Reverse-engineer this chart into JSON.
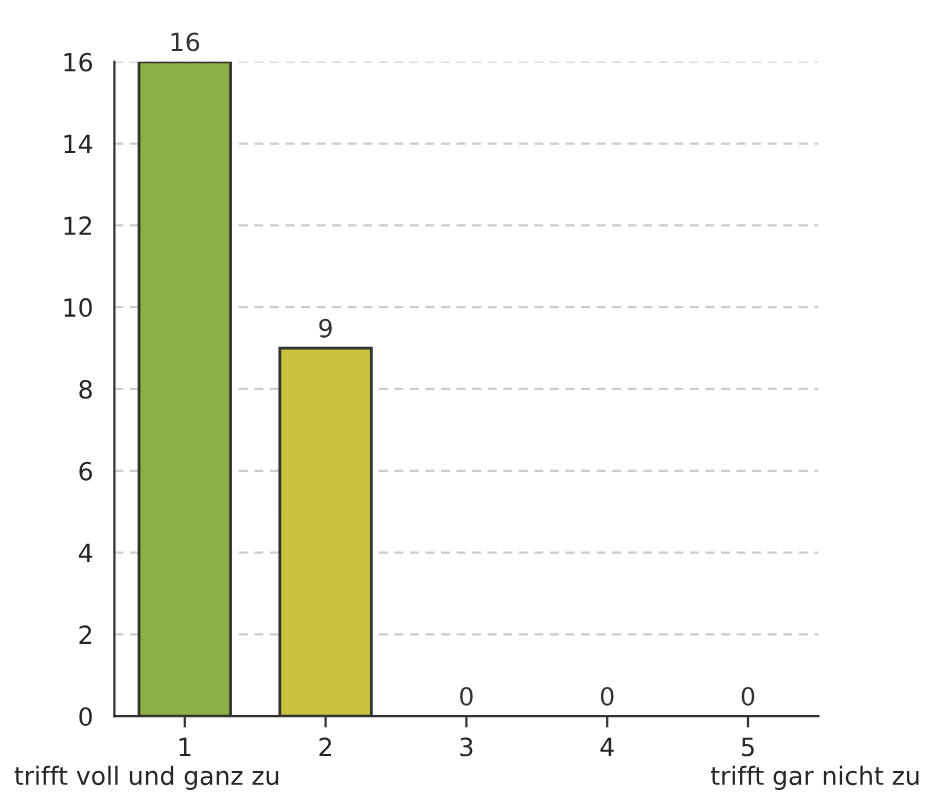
{
  "chart_data": {
    "type": "bar",
    "categories": [
      "1",
      "2",
      "3",
      "4",
      "5"
    ],
    "values": [
      16,
      9,
      0,
      0,
      0
    ],
    "colors": [
      "#8db046",
      "#c9c23e",
      null,
      null,
      null
    ],
    "ylim": [
      0,
      16
    ],
    "yticks": [
      0,
      2,
      4,
      6,
      8,
      10,
      12,
      14,
      16
    ],
    "grid": "y",
    "data_labels": true,
    "annotations": [
      "trifft voll und ganz zu",
      "trifft gar nicht zu"
    ]
  }
}
